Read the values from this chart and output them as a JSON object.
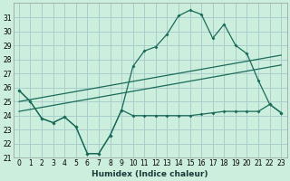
{
  "xlabel": "Humidex (Indice chaleur)",
  "background_color": "#cceedd",
  "grid_color": "#aacccc",
  "line_color": "#1a6b5a",
  "xlim": [
    -0.5,
    23.5
  ],
  "ylim": [
    21,
    32
  ],
  "yticks": [
    21,
    22,
    23,
    24,
    25,
    26,
    27,
    28,
    29,
    30,
    31
  ],
  "xticks": [
    0,
    1,
    2,
    3,
    4,
    5,
    6,
    7,
    8,
    9,
    10,
    11,
    12,
    13,
    14,
    15,
    16,
    17,
    18,
    19,
    20,
    21,
    22,
    23
  ],
  "series1": [
    25.8,
    25.0,
    23.8,
    23.5,
    23.9,
    23.2,
    21.3,
    21.3,
    22.6,
    24.4,
    27.5,
    28.6,
    28.9,
    29.8,
    31.1,
    31.5,
    31.2,
    29.5,
    30.5,
    29.0,
    28.4,
    26.5,
    24.8,
    24.2
  ],
  "series2": [
    25.8,
    25.0,
    23.8,
    23.5,
    23.9,
    23.2,
    21.3,
    21.3,
    22.6,
    24.4,
    24.0,
    24.0,
    24.0,
    24.0,
    24.0,
    24.0,
    24.1,
    24.2,
    24.3,
    24.3,
    24.3,
    24.3,
    24.8,
    24.2
  ],
  "line1_x": [
    0,
    23
  ],
  "line1_y": [
    25.0,
    28.3
  ],
  "line2_x": [
    0,
    23
  ],
  "line2_y": [
    24.3,
    27.6
  ]
}
